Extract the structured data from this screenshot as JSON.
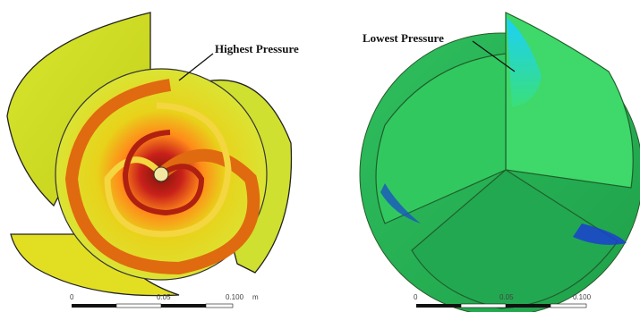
{
  "annotations": {
    "left": "Highest Pressure",
    "right": "Lowest Pressure"
  },
  "scale_bars": {
    "left": {
      "ticks": [
        "0",
        "0.05",
        "0.100",
        "m"
      ]
    },
    "right": {
      "ticks": [
        "0",
        "0.05",
        "0.100"
      ]
    }
  },
  "colors": {
    "high_red": "#c8201a",
    "orange": "#ff8a1a",
    "yellow": "#e8d21a",
    "yellow_green": "#c9e23a",
    "green": "#3fd36a",
    "cyan": "#35d8ff",
    "blue": "#1a3fd0"
  }
}
